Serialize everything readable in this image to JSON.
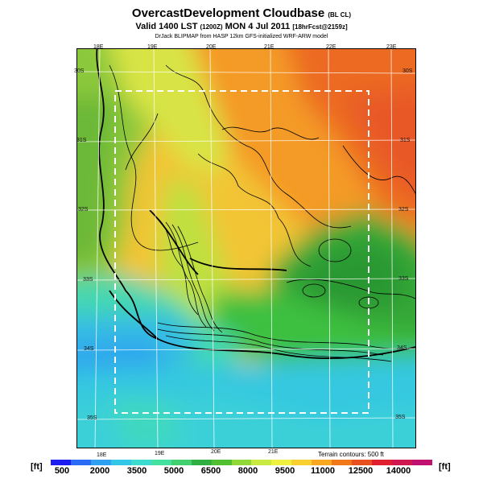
{
  "header": {
    "title": "OvercastDevelopment Cloudbase",
    "title_suffix": "(BL CL)",
    "valid_main": "Valid 1400 LST",
    "valid_code": "(1200Z)",
    "valid_date": "MON 4 Jul 2011",
    "valid_fcst": "[18hrFcst@2159z]",
    "credit": "DrJack BLIPMAP from HASP 12km GFS-initialized WRF-ARW model"
  },
  "map": {
    "lon_top": [
      "18E",
      "19E",
      "20E",
      "21E",
      "22E",
      "23E"
    ],
    "lon_bottom": [
      "18E",
      "19E",
      "20E",
      "21E"
    ],
    "lat_left": [
      "30S",
      "31S",
      "32S",
      "33S",
      "34S",
      "35S"
    ],
    "lat_right": [
      "30S",
      "31S",
      "32S",
      "33S",
      "34S",
      "35S"
    ],
    "terrain_note": "Terrain contours: 500 ft"
  },
  "colorbar": {
    "unit_left": "[ft]",
    "unit_right": "[ft]",
    "tick_labels": [
      "500",
      "2000",
      "3500",
      "5000",
      "6500",
      "8000",
      "9500",
      "11000",
      "12500",
      "14000"
    ],
    "colors": [
      "#1c1cf0",
      "#2a6cf6",
      "#2ea0f0",
      "#34c6e6",
      "#3cdcd0",
      "#44e0a0",
      "#40d070",
      "#30b040",
      "#50c030",
      "#90d838",
      "#c8ea40",
      "#f0f040",
      "#f8d030",
      "#f8a820",
      "#f07818",
      "#e85020",
      "#e02030",
      "#d01850",
      "#c01070"
    ]
  }
}
